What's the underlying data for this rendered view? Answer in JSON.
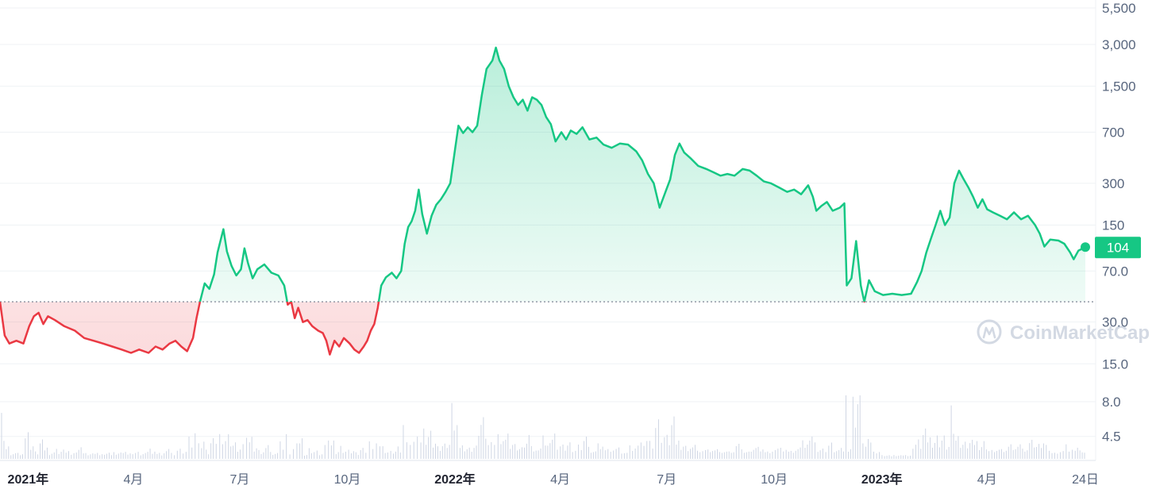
{
  "watermark": {
    "label": "CoinMarketCap",
    "icon": "coinmarketcap-logo-icon"
  },
  "current_price_label": "104",
  "colors": {
    "up": "#16c784",
    "down": "#ea3943",
    "grid": "#eff2f5",
    "text": "#58667e",
    "major_text": "#222531",
    "volume": "#cfd6e4",
    "watermark": "#d3d9e3"
  },
  "chart_data": {
    "type": "line",
    "title": "",
    "xlabel": "",
    "ylabel": "",
    "yscale": "log",
    "ylim": [
      3.1,
      5500
    ],
    "grid": true,
    "baseline": 42,
    "y_ticks": [
      {
        "label": "5,500",
        "value": 5500
      },
      {
        "label": "3,000",
        "value": 3000
      },
      {
        "label": "1,500",
        "value": 1500
      },
      {
        "label": "700",
        "value": 700
      },
      {
        "label": "300",
        "value": 300
      },
      {
        "label": "150",
        "value": 150
      },
      {
        "label": "70.0",
        "value": 70
      },
      {
        "label": "30.0",
        "value": 30
      },
      {
        "label": "15.0",
        "value": 15
      },
      {
        "label": "8.0",
        "value": 8
      },
      {
        "label": "4.5",
        "value": 4.5
      }
    ],
    "x_ticks": [
      {
        "label": "2021年",
        "date": "2021-01-01",
        "major": true
      },
      {
        "label": "4月",
        "date": "2021-04-01",
        "major": false
      },
      {
        "label": "7月",
        "date": "2021-07-01",
        "major": false
      },
      {
        "label": "10月",
        "date": "2021-10-01",
        "major": false
      },
      {
        "label": "2022年",
        "date": "2022-01-01",
        "major": true
      },
      {
        "label": "4月",
        "date": "2022-04-01",
        "major": false
      },
      {
        "label": "7月",
        "date": "2022-07-01",
        "major": false
      },
      {
        "label": "10月",
        "date": "2022-10-01",
        "major": false
      },
      {
        "label": "2023年",
        "date": "2023-01-01",
        "major": true
      },
      {
        "label": "4月",
        "date": "2023-04-01",
        "major": false
      },
      {
        "label": "24日",
        "date": "2023-06-24",
        "major": false
      }
    ],
    "series": [
      {
        "values": [
          [
            "2020-12-08",
            42
          ],
          [
            "2020-12-12",
            24
          ],
          [
            "2020-12-16",
            21
          ],
          [
            "2020-12-22",
            22
          ],
          [
            "2020-12-28",
            21
          ],
          [
            "2021-01-02",
            28
          ],
          [
            "2021-01-06",
            33
          ],
          [
            "2021-01-10",
            35
          ],
          [
            "2021-01-14",
            29
          ],
          [
            "2021-01-18",
            33
          ],
          [
            "2021-01-24",
            31
          ],
          [
            "2021-02-01",
            28
          ],
          [
            "2021-02-10",
            26
          ],
          [
            "2021-02-18",
            23
          ],
          [
            "2021-02-26",
            22
          ],
          [
            "2021-03-06",
            21
          ],
          [
            "2021-03-14",
            20
          ],
          [
            "2021-03-22",
            19
          ],
          [
            "2021-03-30",
            18
          ],
          [
            "2021-04-06",
            19
          ],
          [
            "2021-04-14",
            18
          ],
          [
            "2021-04-20",
            20
          ],
          [
            "2021-04-26",
            19
          ],
          [
            "2021-05-02",
            21
          ],
          [
            "2021-05-07",
            22
          ],
          [
            "2021-05-12",
            20
          ],
          [
            "2021-05-17",
            18.5
          ],
          [
            "2021-05-22",
            23
          ],
          [
            "2021-05-25",
            32
          ],
          [
            "2021-05-28",
            42
          ],
          [
            "2021-06-01",
            57
          ],
          [
            "2021-06-05",
            52
          ],
          [
            "2021-06-09",
            66
          ],
          [
            "2021-06-12",
            95
          ],
          [
            "2021-06-15",
            120
          ],
          [
            "2021-06-17",
            140
          ],
          [
            "2021-06-20",
            97
          ],
          [
            "2021-06-24",
            76
          ],
          [
            "2021-06-28",
            65
          ],
          [
            "2021-07-02",
            72
          ],
          [
            "2021-07-05",
            102
          ],
          [
            "2021-07-08",
            80
          ],
          [
            "2021-07-12",
            62
          ],
          [
            "2021-07-16",
            72
          ],
          [
            "2021-07-22",
            78
          ],
          [
            "2021-07-28",
            68
          ],
          [
            "2021-08-03",
            65
          ],
          [
            "2021-08-08",
            55
          ],
          [
            "2021-08-11",
            40
          ],
          [
            "2021-08-14",
            42
          ],
          [
            "2021-08-17",
            32
          ],
          [
            "2021-08-20",
            38
          ],
          [
            "2021-08-24",
            30
          ],
          [
            "2021-08-28",
            31
          ],
          [
            "2021-09-01",
            28
          ],
          [
            "2021-09-06",
            26
          ],
          [
            "2021-09-10",
            25
          ],
          [
            "2021-09-13",
            22
          ],
          [
            "2021-09-16",
            17.5
          ],
          [
            "2021-09-20",
            22
          ],
          [
            "2021-09-24",
            20
          ],
          [
            "2021-09-28",
            23
          ],
          [
            "2021-10-03",
            21
          ],
          [
            "2021-10-07",
            19
          ],
          [
            "2021-10-11",
            18
          ],
          [
            "2021-10-15",
            20
          ],
          [
            "2021-10-18",
            22
          ],
          [
            "2021-10-21",
            26
          ],
          [
            "2021-10-24",
            29
          ],
          [
            "2021-10-27",
            38
          ],
          [
            "2021-10-30",
            55
          ],
          [
            "2021-11-03",
            63
          ],
          [
            "2021-11-08",
            68
          ],
          [
            "2021-11-12",
            62
          ],
          [
            "2021-11-16",
            70
          ],
          [
            "2021-11-19",
            110
          ],
          [
            "2021-11-22",
            145
          ],
          [
            "2021-11-25",
            160
          ],
          [
            "2021-11-28",
            190
          ],
          [
            "2021-12-01",
            270
          ],
          [
            "2021-12-04",
            180
          ],
          [
            "2021-12-08",
            130
          ],
          [
            "2021-12-12",
            175
          ],
          [
            "2021-12-16",
            210
          ],
          [
            "2021-12-20",
            230
          ],
          [
            "2021-12-24",
            260
          ],
          [
            "2021-12-28",
            300
          ],
          [
            "2022-01-01",
            520
          ],
          [
            "2022-01-04",
            780
          ],
          [
            "2022-01-08",
            690
          ],
          [
            "2022-01-12",
            760
          ],
          [
            "2022-01-16",
            700
          ],
          [
            "2022-01-20",
            780
          ],
          [
            "2022-01-24",
            1300
          ],
          [
            "2022-01-28",
            2000
          ],
          [
            "2022-02-02",
            2300
          ],
          [
            "2022-02-05",
            2850
          ],
          [
            "2022-02-08",
            2300
          ],
          [
            "2022-02-12",
            2000
          ],
          [
            "2022-02-16",
            1500
          ],
          [
            "2022-02-20",
            1250
          ],
          [
            "2022-02-24",
            1100
          ],
          [
            "2022-02-28",
            1200
          ],
          [
            "2022-03-04",
            1000
          ],
          [
            "2022-03-08",
            1250
          ],
          [
            "2022-03-12",
            1200
          ],
          [
            "2022-03-16",
            1100
          ],
          [
            "2022-03-20",
            900
          ],
          [
            "2022-03-24",
            800
          ],
          [
            "2022-03-28",
            600
          ],
          [
            "2022-04-02",
            700
          ],
          [
            "2022-04-06",
            620
          ],
          [
            "2022-04-10",
            720
          ],
          [
            "2022-04-15",
            680
          ],
          [
            "2022-04-20",
            760
          ],
          [
            "2022-04-26",
            620
          ],
          [
            "2022-05-02",
            640
          ],
          [
            "2022-05-08",
            570
          ],
          [
            "2022-05-15",
            540
          ],
          [
            "2022-05-22",
            580
          ],
          [
            "2022-05-29",
            570
          ],
          [
            "2022-06-05",
            510
          ],
          [
            "2022-06-10",
            440
          ],
          [
            "2022-06-15",
            350
          ],
          [
            "2022-06-20",
            300
          ],
          [
            "2022-06-25",
            200
          ],
          [
            "2022-06-30",
            260
          ],
          [
            "2022-07-04",
            320
          ],
          [
            "2022-07-08",
            480
          ],
          [
            "2022-07-12",
            580
          ],
          [
            "2022-07-16",
            500
          ],
          [
            "2022-07-22",
            450
          ],
          [
            "2022-07-28",
            400
          ],
          [
            "2022-08-04",
            380
          ],
          [
            "2022-08-10",
            360
          ],
          [
            "2022-08-16",
            340
          ],
          [
            "2022-08-22",
            350
          ],
          [
            "2022-08-28",
            340
          ],
          [
            "2022-09-04",
            380
          ],
          [
            "2022-09-10",
            370
          ],
          [
            "2022-09-16",
            340
          ],
          [
            "2022-09-22",
            310
          ],
          [
            "2022-09-28",
            300
          ],
          [
            "2022-10-05",
            280
          ],
          [
            "2022-10-12",
            260
          ],
          [
            "2022-10-18",
            270
          ],
          [
            "2022-10-24",
            250
          ],
          [
            "2022-10-30",
            290
          ],
          [
            "2022-11-03",
            240
          ],
          [
            "2022-11-06",
            190
          ],
          [
            "2022-11-10",
            205
          ],
          [
            "2022-11-15",
            220
          ],
          [
            "2022-11-20",
            190
          ],
          [
            "2022-11-26",
            200
          ],
          [
            "2022-11-30",
            215
          ],
          [
            "2022-12-02",
            55
          ],
          [
            "2022-12-06",
            62
          ],
          [
            "2022-12-10",
            115
          ],
          [
            "2022-12-14",
            55
          ],
          [
            "2022-12-17",
            42
          ],
          [
            "2022-12-21",
            60
          ],
          [
            "2022-12-26",
            50
          ],
          [
            "2023-01-02",
            47
          ],
          [
            "2023-01-10",
            48
          ],
          [
            "2023-01-18",
            47
          ],
          [
            "2023-01-26",
            48
          ],
          [
            "2023-01-31",
            58
          ],
          [
            "2023-02-04",
            70
          ],
          [
            "2023-02-08",
            95
          ],
          [
            "2023-02-12",
            120
          ],
          [
            "2023-02-16",
            150
          ],
          [
            "2023-02-20",
            190
          ],
          [
            "2023-02-24",
            150
          ],
          [
            "2023-02-28",
            170
          ],
          [
            "2023-03-04",
            300
          ],
          [
            "2023-03-08",
            370
          ],
          [
            "2023-03-12",
            320
          ],
          [
            "2023-03-16",
            280
          ],
          [
            "2023-03-20",
            240
          ],
          [
            "2023-03-24",
            200
          ],
          [
            "2023-03-28",
            230
          ],
          [
            "2023-04-01",
            195
          ],
          [
            "2023-04-06",
            185
          ],
          [
            "2023-04-12",
            175
          ],
          [
            "2023-04-18",
            165
          ],
          [
            "2023-04-24",
            185
          ],
          [
            "2023-04-30",
            165
          ],
          [
            "2023-05-06",
            175
          ],
          [
            "2023-05-12",
            150
          ],
          [
            "2023-05-16",
            130
          ],
          [
            "2023-05-20",
            105
          ],
          [
            "2023-05-25",
            118
          ],
          [
            "2023-06-01",
            116
          ],
          [
            "2023-06-06",
            110
          ],
          [
            "2023-06-11",
            95
          ],
          [
            "2023-06-14",
            85
          ],
          [
            "2023-06-18",
            98
          ],
          [
            "2023-06-22",
            102
          ],
          [
            "2023-06-24",
            104
          ]
        ]
      }
    ]
  }
}
